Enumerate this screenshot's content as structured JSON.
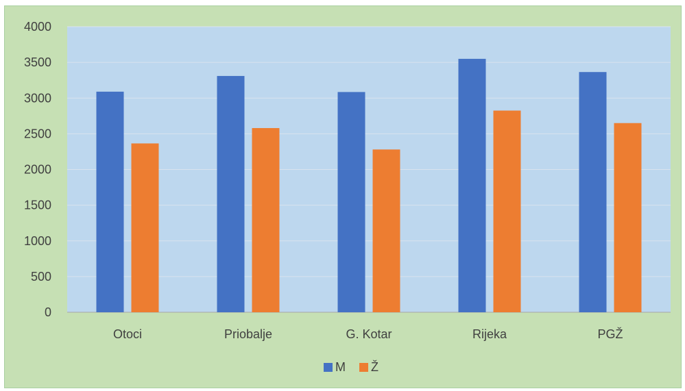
{
  "chart_data": {
    "type": "bar",
    "categories": [
      "Otoci",
      "Priobalje",
      "G. Kotar",
      "Rijeka",
      "PGŽ"
    ],
    "series": [
      {
        "name": "M",
        "values": [
          3090,
          3310,
          3085,
          3550,
          3365
        ],
        "color": "#4472c4"
      },
      {
        "name": "Ž",
        "values": [
          2365,
          2580,
          2280,
          2825,
          2650
        ],
        "color": "#ed7d31"
      }
    ],
    "ylim": [
      0,
      4000
    ],
    "yticks": [
      0,
      500,
      1000,
      1500,
      2000,
      2500,
      3000,
      3500,
      4000
    ],
    "grid": true,
    "legend_position": "bottom",
    "plot_background": "#bdd7ee",
    "chart_background": "#c6e0b4"
  }
}
